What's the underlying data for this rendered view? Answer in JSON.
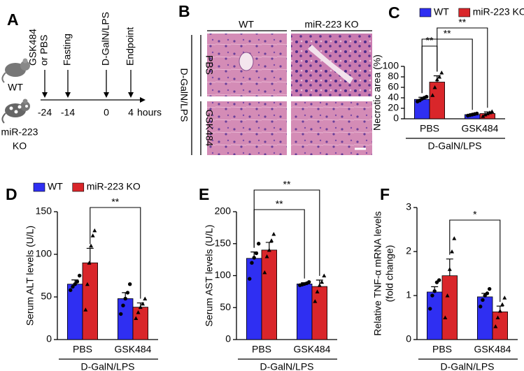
{
  "panel_a": {
    "letter": "A",
    "strains": [
      [
        "WT"
      ],
      [
        "miR-223",
        "KO"
      ]
    ],
    "events": [
      [
        "GSK484",
        "or PBS"
      ],
      [
        "Fasting"
      ],
      [
        "D-GalN/LPS"
      ],
      [
        "Endpoint"
      ]
    ],
    "timepoints": [
      "-24",
      "-14",
      "0",
      "4"
    ],
    "unit": "hours"
  },
  "panel_b": {
    "letter": "B",
    "columns": [
      "WT",
      "miR-223 KO"
    ],
    "rows": [
      "PBS",
      "GSK484"
    ],
    "group_label": "D-GalN/LPS"
  },
  "chart_data": [
    {
      "type": "bar",
      "panel_label": "C",
      "ylabel": [
        "Necrotic area (%)"
      ],
      "categories": [
        "PBS",
        "GSK484"
      ],
      "group_label": "D-GalN/LPS",
      "ylim": [
        0,
        100
      ],
      "yticks": [
        0,
        20,
        40,
        60,
        80,
        100
      ],
      "legend": true,
      "series": [
        {
          "name": "WT",
          "color": "#2f2ff2",
          "marker": "circle",
          "values": [
            37,
            8
          ],
          "errors": [
            4,
            1
          ],
          "points": [
            [
              33,
              35,
              38,
              40,
              42
            ],
            [
              6,
              7,
              8,
              9,
              10
            ]
          ]
        },
        {
          "name": "miR-223 KO",
          "color": "#d9262a",
          "marker": "triangle",
          "values": [
            70,
            10
          ],
          "errors": [
            12,
            3
          ],
          "points": [
            [
              45,
              60,
              75,
              80,
              88
            ],
            [
              5,
              8,
              10,
              12,
              14
            ]
          ]
        }
      ],
      "significance": [
        {
          "label": "**",
          "from": [
            0,
            0
          ],
          "to": [
            1,
            0
          ]
        },
        {
          "label": "**",
          "from": [
            0,
            0
          ],
          "to": [
            0,
            1
          ]
        },
        {
          "label": "**",
          "from": [
            1,
            0
          ],
          "to": [
            1,
            1
          ]
        }
      ]
    },
    {
      "type": "bar",
      "panel_label": "D",
      "ylabel": [
        "Serum ALT levels (U/L)"
      ],
      "categories": [
        "PBS",
        "GSK484"
      ],
      "group_label": "D-GalN/LPS",
      "ylim": [
        0,
        150
      ],
      "yticks": [
        0,
        50,
        100,
        150
      ],
      "legend": true,
      "series": [
        {
          "name": "WT",
          "color": "#2f2ff2",
          "marker": "circle",
          "values": [
            65,
            48
          ],
          "errors": [
            5,
            7
          ],
          "points": [
            [
              58,
              62,
              65,
              68,
              75
            ],
            [
              30,
              40,
              48,
              55,
              65
            ]
          ]
        },
        {
          "name": "miR-223 KO",
          "color": "#d9262a",
          "marker": "triangle",
          "values": [
            90,
            38
          ],
          "errors": [
            17,
            5
          ],
          "points": [
            [
              35,
              65,
              90,
              110,
              122,
              128
            ],
            [
              25,
              32,
              38,
              42,
              48
            ]
          ]
        }
      ],
      "significance": [
        {
          "label": "**",
          "from": [
            1,
            0
          ],
          "to": [
            1,
            1
          ]
        }
      ]
    },
    {
      "type": "bar",
      "panel_label": "E",
      "ylabel": [
        "Serum AST levels (U/L)"
      ],
      "categories": [
        "PBS",
        "GSK484"
      ],
      "group_label": "D-GalN/LPS",
      "ylim": [
        0,
        200
      ],
      "yticks": [
        0,
        50,
        100,
        150,
        200
      ],
      "legend": false,
      "series": [
        {
          "name": "WT",
          "color": "#2f2ff2",
          "marker": "circle",
          "values": [
            127,
            87
          ],
          "errors": [
            10,
            2
          ],
          "points": [
            [
              95,
              120,
              128,
              135,
              150
            ],
            [
              85,
              86,
              87,
              88,
              90
            ]
          ]
        },
        {
          "name": "miR-223 KO",
          "color": "#d9262a",
          "marker": "triangle",
          "values": [
            140,
            83
          ],
          "errors": [
            12,
            10
          ],
          "points": [
            [
              105,
              130,
              140,
              155,
              165
            ],
            [
              60,
              75,
              85,
              90,
              100
            ]
          ]
        }
      ],
      "significance": [
        {
          "label": "**",
          "from": [
            0,
            0
          ],
          "to": [
            0,
            1
          ]
        },
        {
          "label": "**",
          "from": [
            0,
            0
          ],
          "to": [
            1,
            1
          ]
        }
      ]
    },
    {
      "type": "bar",
      "panel_label": "F",
      "ylabel": [
        "Relative TNF-α mRNA levels",
        "(fold change)"
      ],
      "categories": [
        "PBS",
        "GSK484"
      ],
      "group_label": "D-GalN/LPS",
      "ylim": [
        0,
        3
      ],
      "yticks": [
        0,
        1,
        2,
        3
      ],
      "legend": false,
      "series": [
        {
          "name": "WT",
          "color": "#2f2ff2",
          "marker": "circle",
          "values": [
            1.08,
            0.97
          ],
          "errors": [
            0.12,
            0.08
          ],
          "points": [
            [
              0.7,
              1.0,
              1.1,
              1.3,
              1.35
            ],
            [
              0.75,
              0.9,
              1.0,
              1.05,
              1.15
            ]
          ]
        },
        {
          "name": "miR-223 KO",
          "color": "#d9262a",
          "marker": "triangle",
          "values": [
            1.45,
            0.63
          ],
          "errors": [
            0.38,
            0.13
          ],
          "points": [
            [
              0.5,
              1.0,
              1.6,
              2.0,
              2.3
            ],
            [
              0.3,
              0.5,
              0.65,
              0.8,
              0.95
            ]
          ]
        }
      ],
      "significance": [
        {
          "label": "*",
          "from": [
            1,
            0
          ],
          "to": [
            1,
            1
          ]
        }
      ]
    }
  ]
}
